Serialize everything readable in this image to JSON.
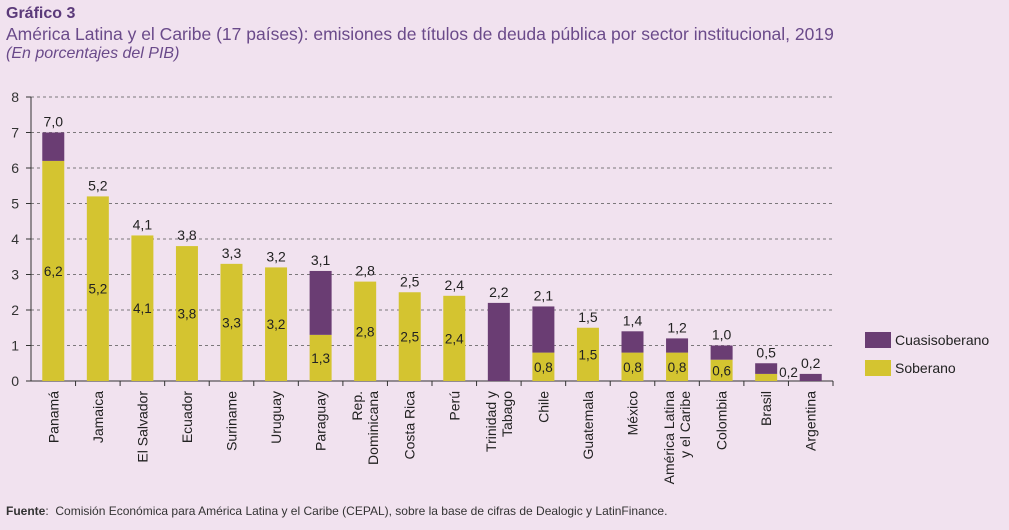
{
  "header": {
    "label": "Gráfico 3",
    "title": "América Latina y el Caribe (17 países): emisiones de títulos de deuda pública por sector institucional, 2019",
    "subtitle": "(En porcentajes del PIB)"
  },
  "footer": {
    "source_label": "Fuente",
    "source_text": "Comisión Económica para América Latina y el Caribe (CEPAL), sobre la base de cifras de Dealogic y LatinFinance."
  },
  "chart_data": {
    "type": "bar",
    "stacked": true,
    "categories": [
      [
        "Panamá"
      ],
      [
        "Jamaica"
      ],
      [
        "El Salvador"
      ],
      [
        "Ecuador"
      ],
      [
        "Suriname"
      ],
      [
        "Uruguay"
      ],
      [
        "Paraguay"
      ],
      [
        "Rep.",
        "Dominicana"
      ],
      [
        "Costa Rica"
      ],
      [
        "Perú"
      ],
      [
        "Trinidad y",
        "Tabago"
      ],
      [
        "Chile"
      ],
      [
        "Guatemala"
      ],
      [
        "México"
      ],
      [
        "América Latina",
        "y el Caribe"
      ],
      [
        "Colombia"
      ],
      [
        "Brasil"
      ],
      [
        "Argentina"
      ]
    ],
    "series": [
      {
        "name": "Soberano",
        "color": "#d4c430",
        "values": [
          6.2,
          5.2,
          4.1,
          3.8,
          3.3,
          3.2,
          1.3,
          2.8,
          2.5,
          2.4,
          0,
          0.8,
          1.5,
          0.8,
          0.8,
          0.6,
          0.2,
          0
        ],
        "labels": [
          "6,2",
          "5,2",
          "4,1",
          "3,8",
          "3,3",
          "3,2",
          "1,3",
          "2,8",
          "2,5",
          "2,4",
          "",
          "0,8",
          "1,5",
          "0,8",
          "0,8",
          "0,6",
          "",
          ""
        ]
      },
      {
        "name": "Cuasisoberano",
        "color": "#6a3d73",
        "values": [
          0.8,
          0,
          0,
          0,
          0,
          0,
          1.8,
          0,
          0,
          0,
          2.2,
          1.3,
          0,
          0.6,
          0.4,
          0.4,
          0.3,
          0.2
        ],
        "labels": [
          "",
          "",
          "",
          "",
          "",
          "",
          "",
          "",
          "",
          "",
          "",
          "",
          "",
          "",
          "",
          "",
          "",
          ""
        ]
      }
    ],
    "totals": [
      "7,0",
      "5,2",
      "4,1",
      "3,8",
      "3,3",
      "3,2",
      "3,1",
      "2,8",
      "2,5",
      "2,4",
      "2,2",
      "2,1",
      "1,5",
      "1,4",
      "1,2",
      "1,0",
      "0,5",
      "0,2"
    ],
    "side_labels": {
      "16": "0,2"
    },
    "ylim": [
      0,
      8
    ],
    "yticks": [
      "0",
      "1",
      "2",
      "3",
      "4",
      "5",
      "6",
      "7",
      "8"
    ],
    "grid": true,
    "legend": {
      "position": "right",
      "entries": [
        "Cuasisoberano",
        "Soberano"
      ]
    }
  }
}
